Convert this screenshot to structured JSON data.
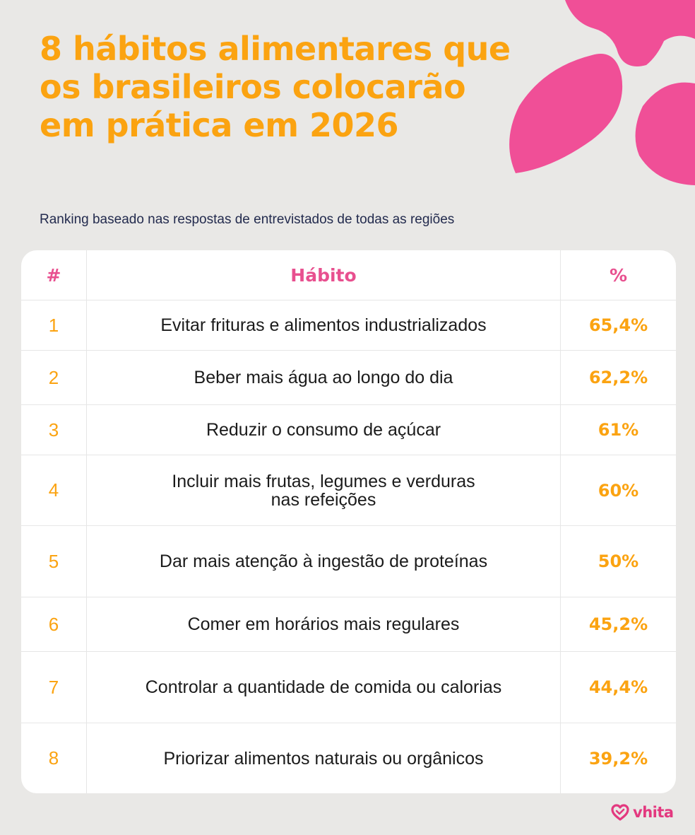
{
  "title": "8 hábitos alimentares que os brasileiros colocarão em prática em 2026",
  "subtitle": "Ranking baseado nas respostas de entrevistados de todas as regiões",
  "table": {
    "headers": {
      "rank": "#",
      "habit": "Hábito",
      "percent": "%"
    },
    "rows": [
      {
        "rank": "1",
        "habit": "Evitar frituras e alimentos industrializados",
        "percent": "65,4%"
      },
      {
        "rank": "2",
        "habit": "Beber mais água ao longo do dia",
        "percent": "62,2%"
      },
      {
        "rank": "3",
        "habit": "Reduzir o consumo de açúcar",
        "percent": "61%"
      },
      {
        "rank": "4",
        "habit": "Incluir mais frutas, legumes e verduras\nnas refeições",
        "percent": "60%"
      },
      {
        "rank": "5",
        "habit": "Dar mais atenção à ingestão de proteínas",
        "percent": "50%"
      },
      {
        "rank": "6",
        "habit": "Comer em horários mais regulares",
        "percent": "45,2%"
      },
      {
        "rank": "7",
        "habit": "Controlar a quantidade de comida ou calorias",
        "percent": "44,4%"
      },
      {
        "rank": "8",
        "habit": "Priorizar alimentos naturais ou orgânicos",
        "percent": "39,2%"
      }
    ]
  },
  "brand": {
    "name": "vhita",
    "icon": "heart-logo-icon"
  },
  "colors": {
    "background": "#e9e8e6",
    "title": "#fba311",
    "accent_pink": "#f04f97",
    "header_pink": "#e8508f",
    "percent_orange": "#fba311",
    "brand_pink": "#e3387f"
  }
}
